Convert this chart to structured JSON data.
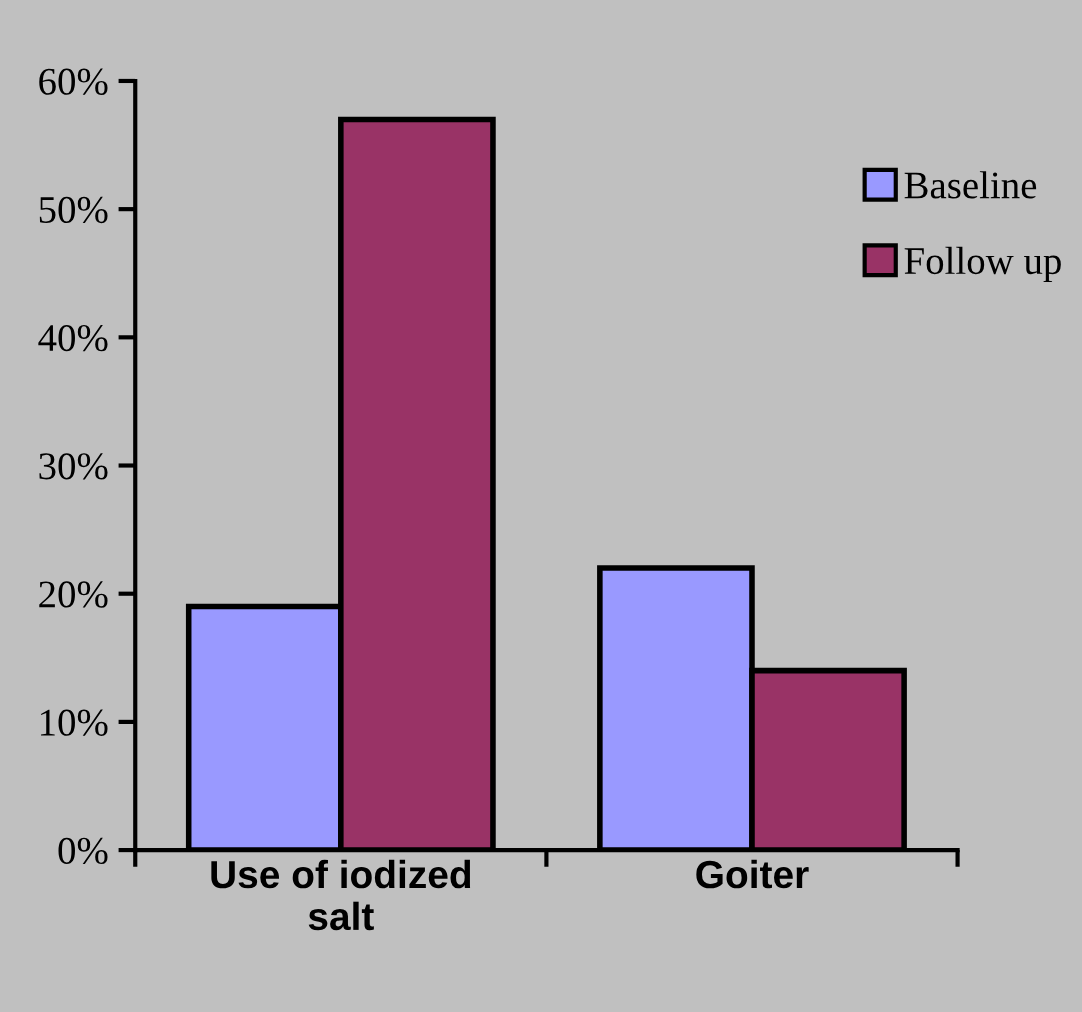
{
  "chart_data": {
    "type": "bar",
    "categories": [
      "Use of iodized\nsalt",
      "Goiter"
    ],
    "series": [
      {
        "name": "Baseline",
        "color": "#9999ff",
        "values": [
          19,
          22
        ]
      },
      {
        "name": "Follow up",
        "color": "#993366",
        "values": [
          57,
          14
        ]
      }
    ],
    "ylim": [
      0,
      60
    ],
    "yticks": [
      {
        "value": 0,
        "label": "0%"
      },
      {
        "value": 10,
        "label": "10%"
      },
      {
        "value": 20,
        "label": "20%"
      },
      {
        "value": 30,
        "label": "30%"
      },
      {
        "value": 40,
        "label": "40%"
      },
      {
        "value": 50,
        "label": "50%"
      },
      {
        "value": 60,
        "label": "60%"
      }
    ],
    "grid": false,
    "legend": "right"
  }
}
